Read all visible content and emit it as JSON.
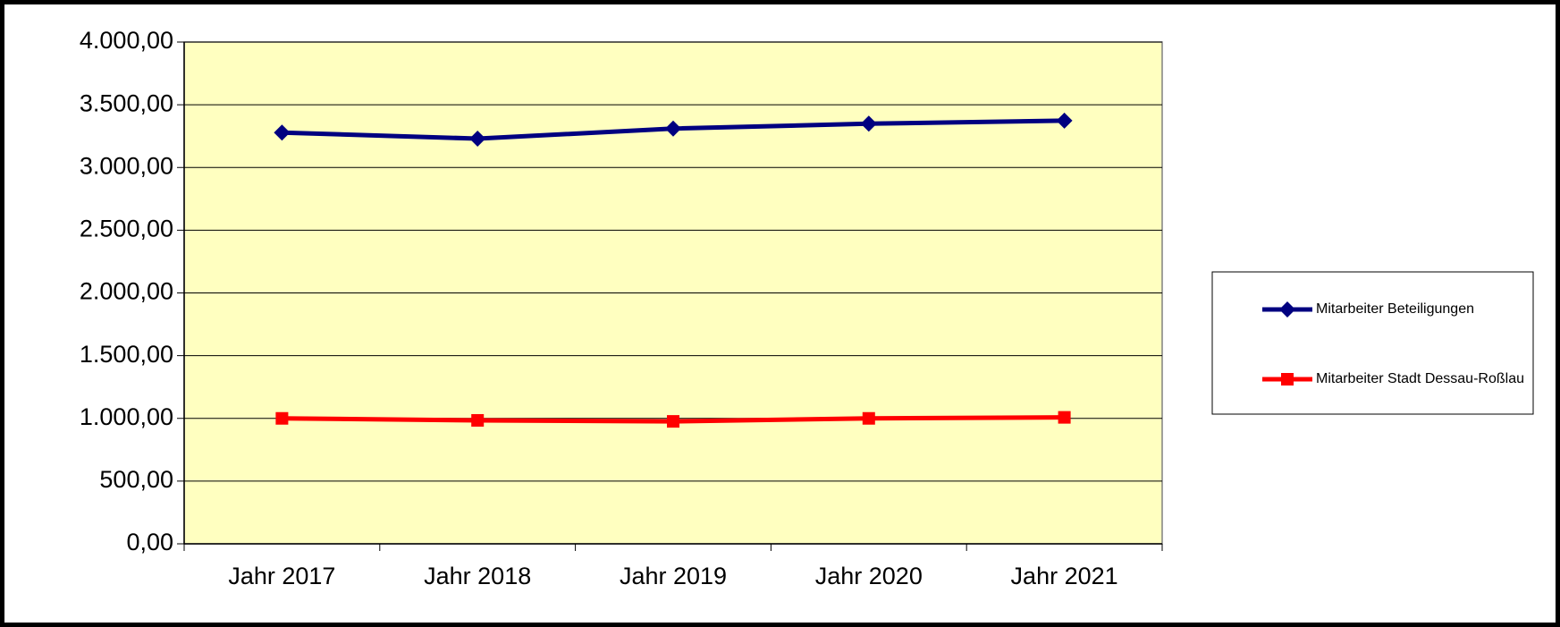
{
  "chart_data": {
    "type": "line",
    "categories": [
      "Jahr 2017",
      "Jahr 2018",
      "Jahr 2019",
      "Jahr 2020",
      "Jahr 2021"
    ],
    "series": [
      {
        "name": "Mitarbeiter Beteiligungen",
        "color": "#000080",
        "marker": "diamond",
        "values": [
          3278,
          3230,
          3310,
          3349,
          3373
        ]
      },
      {
        "name": "Mitarbeiter Stadt Dessau-Roßlau",
        "color": "#ff0000",
        "marker": "square",
        "values": [
          1000,
          984,
          976,
          1000,
          1008
        ]
      }
    ],
    "ylim": [
      0,
      4000
    ],
    "yticks": [
      {
        "value": 0,
        "label": "0,00"
      },
      {
        "value": 500,
        "label": "500,00"
      },
      {
        "value": 1000,
        "label": "1.000,00"
      },
      {
        "value": 1500,
        "label": "1.500,00"
      },
      {
        "value": 2000,
        "label": "2.000,00"
      },
      {
        "value": 2500,
        "label": "2.500,00"
      },
      {
        "value": 3000,
        "label": "3.000,00"
      },
      {
        "value": 3500,
        "label": "3.500,00"
      },
      {
        "value": 4000,
        "label": "4.000,00"
      }
    ],
    "grid": true,
    "plot_background": "#ffffc0",
    "legend": "right"
  }
}
